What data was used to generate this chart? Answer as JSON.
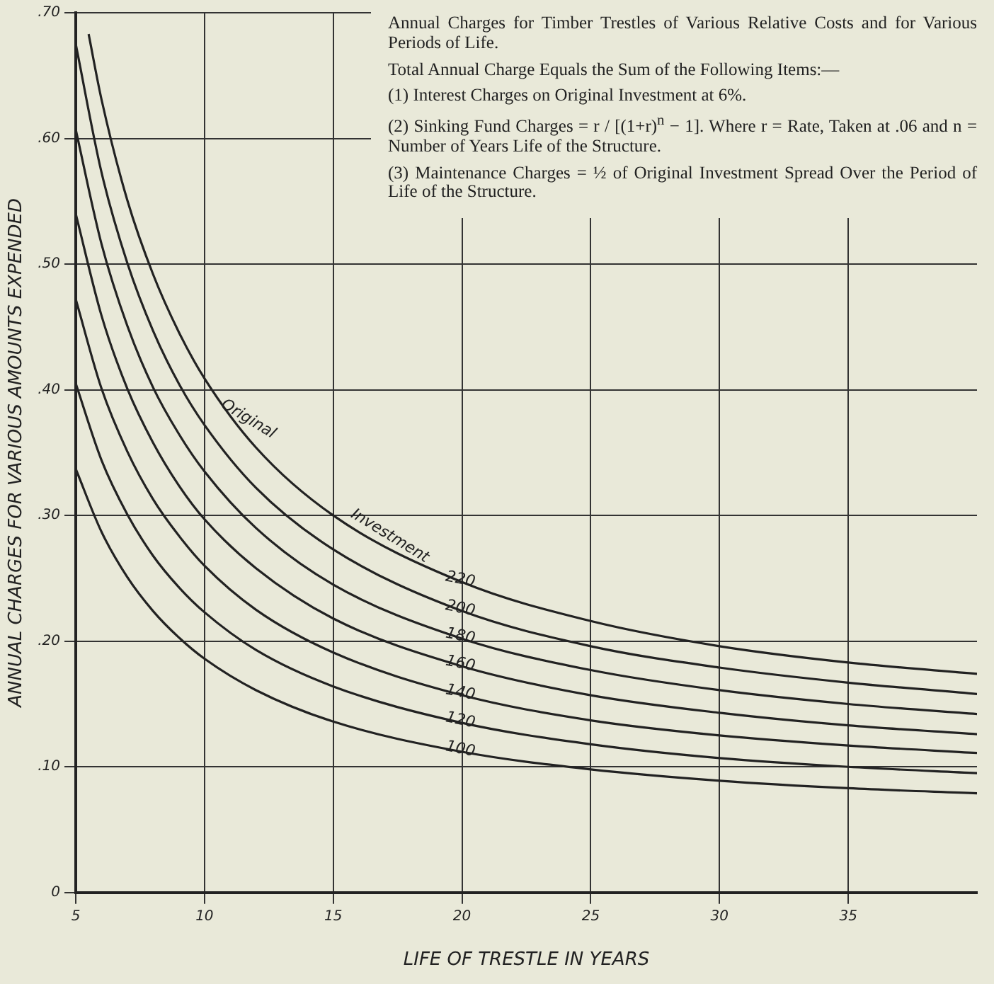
{
  "chart_data": {
    "type": "line",
    "title": "Annual Charges for Timber Trestles of Various Relative Costs and for Various Periods of Life.",
    "annotations": [
      "Total Annual Charge Equals the Sum of the Following Items:—",
      "(1) Interest Charges on Original Investment at 6%.",
      "(2) Sinking Fund Charges = r / [(1+r)$^{n}$ − 1]. Where r = Rate, Taken at .06 and n = Number of Years Life of the Structure.",
      "(3) Maintenance Charges = ½ of Original Investment Spread Over the Period of Life of the Structure.",
      {
        "text": "Original",
        "x": 11.5,
        "y": 0.37
      },
      {
        "text": "Investment",
        "x": 17,
        "y": 0.277
      }
    ],
    "xlabel": "LIFE OF TRESTLE IN YEARS",
    "ylabel": "ANNUAL CHARGES FOR VARIOUS AMOUNTS EXPENDED",
    "x": [
      5,
      6,
      7,
      8,
      9,
      10,
      12,
      15,
      20,
      25,
      30,
      35,
      40
    ],
    "series": [
      {
        "name": "100",
        "color": "#222222",
        "values": [
          0.337,
          0.287,
          0.251,
          0.224,
          0.203,
          0.186,
          0.161,
          0.136,
          0.112,
          0.098,
          0.089,
          0.083,
          0.079
        ]
      },
      {
        "name": "120",
        "color": "#222222",
        "values": [
          0.405,
          0.344,
          0.301,
          0.268,
          0.243,
          0.223,
          0.193,
          0.164,
          0.135,
          0.118,
          0.107,
          0.1,
          0.095
        ]
      },
      {
        "name": "140",
        "color": "#222222",
        "values": [
          0.472,
          0.401,
          0.351,
          0.313,
          0.284,
          0.26,
          0.225,
          0.191,
          0.157,
          0.137,
          0.125,
          0.117,
          0.111
        ]
      },
      {
        "name": "160",
        "color": "#222222",
        "values": [
          0.54,
          0.459,
          0.401,
          0.358,
          0.324,
          0.297,
          0.258,
          0.218,
          0.18,
          0.157,
          0.143,
          0.133,
          0.126
        ]
      },
      {
        "name": "180",
        "color": "#222222",
        "values": [
          0.607,
          0.516,
          0.451,
          0.402,
          0.365,
          0.335,
          0.29,
          0.245,
          0.202,
          0.177,
          0.161,
          0.15,
          0.142
        ]
      },
      {
        "name": "200",
        "color": "#222222",
        "values": [
          0.675,
          0.573,
          0.501,
          0.447,
          0.405,
          0.372,
          0.322,
          0.273,
          0.224,
          0.196,
          0.179,
          0.167,
          0.158
        ]
      },
      {
        "name": "220",
        "color": "#222222",
        "x": [
          5.5,
          6,
          7,
          8,
          9,
          10,
          12,
          15,
          20,
          25,
          30,
          35,
          40
        ],
        "values": [
          0.683,
          0.631,
          0.551,
          0.492,
          0.446,
          0.409,
          0.354,
          0.3,
          0.247,
          0.216,
          0.196,
          0.183,
          0.174
        ]
      }
    ],
    "xlim": [
      5,
      40
    ],
    "xticks": [
      5,
      10,
      15,
      20,
      25,
      30,
      35
    ],
    "ylim": [
      0,
      0.7
    ],
    "yticks": [
      {
        "value": 0,
        "label": "0"
      },
      {
        "value": 0.1,
        "label": ".10"
      },
      {
        "value": 0.2,
        "label": ".20"
      },
      {
        "value": 0.3,
        "label": ".30"
      },
      {
        "value": 0.4,
        "label": ".40"
      },
      {
        "value": 0.5,
        "label": ".50"
      },
      {
        "value": 0.6,
        "label": ".60"
      },
      {
        "value": 0.7,
        "label": ".70"
      }
    ],
    "grid": true,
    "legend": false,
    "marker": "none",
    "line_style": "solid"
  }
}
